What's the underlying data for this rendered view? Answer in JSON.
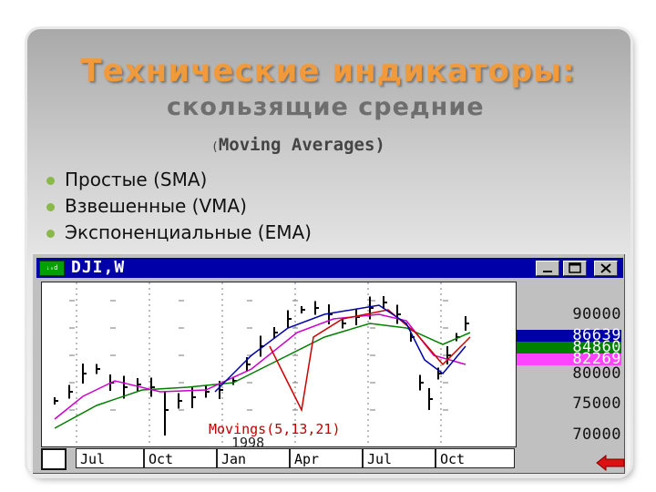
{
  "title": "Технические индикаторы:",
  "subtitle": "скользящие средние",
  "subsubtitle": {
    "open_paren": "(",
    "text": "Moving Averages)"
  },
  "bullets": [
    "Простые (SMA)",
    "Взвешенные (VMA)",
    "Экспоненциальные (EMA)"
  ],
  "colors": {
    "title": "#f09a3c",
    "bullet": "#8bb84a",
    "window_titlebar": "#0000a8",
    "sma": "#cc00cc",
    "vma": "#cc0000",
    "ema": "#008000",
    "price_sel_blue": "#0000a8",
    "price_sel_green": "#008000",
    "price_sel_magenta": "#ff44ff"
  },
  "window": {
    "app_icon_text": "ᵢₙd",
    "title": "DJI,W",
    "buttons": [
      "minimize",
      "maximize",
      "close"
    ],
    "icons": {
      "minimize": "minimize-icon",
      "maximize": "maximize-icon",
      "close": "close-icon",
      "nav": "red-arrow-icon"
    }
  },
  "chart": {
    "study_label": "Movings(5,13,21)",
    "year_label": "1998",
    "months": [
      "Jul",
      "Oct",
      "Jan",
      "Apr",
      "Jul",
      "Oct"
    ],
    "price_labels": [
      {
        "text": "90000",
        "style": "plain"
      },
      {
        "text": "86639",
        "style": "blue"
      },
      {
        "text": "84860",
        "style": "green"
      },
      {
        "text": "82269",
        "style": "magenta"
      },
      {
        "text": "80000",
        "style": "plain"
      },
      {
        "text": "75000",
        "style": "plain"
      },
      {
        "text": "70000",
        "style": "plain"
      }
    ]
  }
}
